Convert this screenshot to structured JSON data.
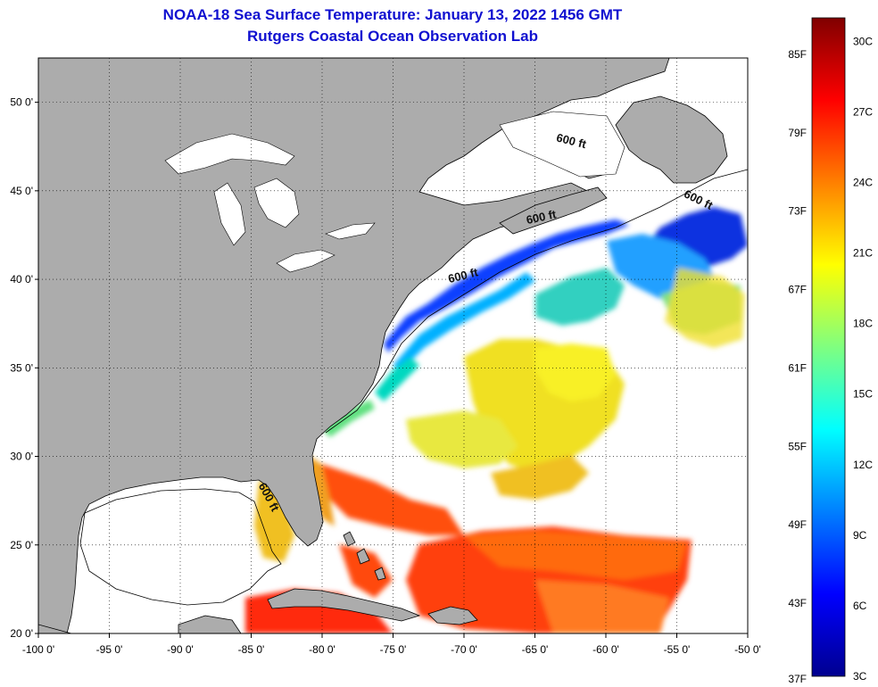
{
  "title": {
    "line1": "NOAA-18 Sea Surface Temperature:  January 13, 2022 1456 GMT",
    "line2": "Rutgers Coastal Ocean Observation Lab"
  },
  "map": {
    "lon_range": [
      -100,
      -50
    ],
    "lat_range": [
      20,
      52.5
    ],
    "lon_ticks": [
      {
        "value": -100,
        "label": "-100 0'"
      },
      {
        "value": -95,
        "label": "-95 0'"
      },
      {
        "value": -90,
        "label": "-90 0'"
      },
      {
        "value": -85,
        "label": "-85 0'"
      },
      {
        "value": -80,
        "label": "-80 0'"
      },
      {
        "value": -75,
        "label": "-75 0'"
      },
      {
        "value": -70,
        "label": "-70 0'"
      },
      {
        "value": -65,
        "label": "-65 0'"
      },
      {
        "value": -60,
        "label": "-60 0'"
      },
      {
        "value": -55,
        "label": "-55 0'"
      },
      {
        "value": -50,
        "label": "-50 0'"
      }
    ],
    "lat_ticks": [
      {
        "value": 20,
        "label": "20 0'"
      },
      {
        "value": 25,
        "label": "25 0'"
      },
      {
        "value": 30,
        "label": "30 0'"
      },
      {
        "value": 35,
        "label": "35 0'"
      },
      {
        "value": 40,
        "label": "40 0'"
      },
      {
        "value": 45,
        "label": "45 0'"
      },
      {
        "value": 50,
        "label": "50 0'"
      }
    ],
    "contour_labels": [
      {
        "text": "600 ft",
        "lon": -62.5,
        "lat": 47.6,
        "rotate": 14
      },
      {
        "text": "600 ft",
        "lon": -53.6,
        "lat": 44.3,
        "rotate": 26
      },
      {
        "text": "600 ft",
        "lon": -64.5,
        "lat": 43.3,
        "rotate": -12
      },
      {
        "text": "600 ft",
        "lon": -70.0,
        "lat": 40.0,
        "rotate": -14
      },
      {
        "text": "600 ft",
        "lon": -84.0,
        "lat": 27.6,
        "rotate": 62
      }
    ],
    "colors": {
      "land": "#acacac",
      "water": "#ffffff",
      "grid": "#000000"
    }
  },
  "colorbar": {
    "f_labels": [
      {
        "value": 37,
        "label": "37F"
      },
      {
        "value": 43,
        "label": "43F"
      },
      {
        "value": 49,
        "label": "49F"
      },
      {
        "value": 55,
        "label": "55F"
      },
      {
        "value": 61,
        "label": "61F"
      },
      {
        "value": 67,
        "label": "67F"
      },
      {
        "value": 73,
        "label": "73F"
      },
      {
        "value": 79,
        "label": "79F"
      },
      {
        "value": 85,
        "label": "85F"
      }
    ],
    "c_labels": [
      {
        "value": 3,
        "label": "3C"
      },
      {
        "value": 6,
        "label": "6C"
      },
      {
        "value": 9,
        "label": "9C"
      },
      {
        "value": 12,
        "label": "12C"
      },
      {
        "value": 15,
        "label": "15C"
      },
      {
        "value": 18,
        "label": "18C"
      },
      {
        "value": 21,
        "label": "21C"
      },
      {
        "value": 24,
        "label": "24C"
      },
      {
        "value": 27,
        "label": "27C"
      },
      {
        "value": 30,
        "label": "30C"
      }
    ],
    "c_range": [
      3,
      31
    ],
    "colormap": "jet"
  }
}
